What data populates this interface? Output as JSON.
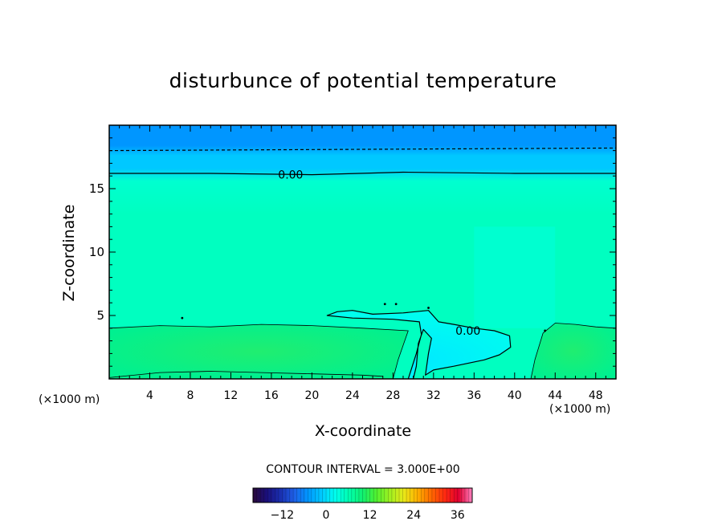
{
  "chart_data": {
    "type": "heatmap",
    "title": "disturbunce of potential temperature",
    "xlabel": "X-coordinate",
    "ylabel": "Z-coordinate",
    "x_unit": "(×1000 m)",
    "xlim": [
      0,
      50
    ],
    "ylim": [
      0,
      20
    ],
    "x_ticks": [
      4,
      8,
      12,
      16,
      20,
      24,
      28,
      32,
      36,
      40,
      44,
      48
    ],
    "y_ticks": [
      5,
      10,
      15
    ],
    "contour_interval_label": "CONTOUR INTERVAL = 3.000E+00",
    "contour_labels": [
      {
        "text": "0.00",
        "x": 17.9,
        "z": 16.1
      },
      {
        "text": "0.00",
        "x": 35.4,
        "z": 3.8
      }
    ],
    "contours": [
      {
        "level": 0,
        "style": "solid",
        "points": [
          [
            0,
            16.2
          ],
          [
            10,
            16.2
          ],
          [
            20,
            16.1
          ],
          [
            29,
            16.3
          ],
          [
            40,
            16.2
          ],
          [
            50,
            16.2
          ]
        ]
      },
      {
        "level": -3,
        "style": "dashed",
        "points": [
          [
            0,
            18.0
          ],
          [
            25,
            18.1
          ],
          [
            50,
            18.2
          ]
        ]
      },
      {
        "level": 0,
        "style": "solid",
        "points": [
          [
            29.5,
            0
          ],
          [
            30.3,
            2.0
          ],
          [
            30.8,
            3.5
          ],
          [
            30.6,
            4.5
          ],
          [
            28,
            4.7
          ],
          [
            24,
            4.8
          ],
          [
            21.5,
            5.0
          ],
          [
            22.5,
            5.3
          ],
          [
            24,
            5.4
          ],
          [
            26,
            5.1
          ],
          [
            29,
            5.2
          ],
          [
            31.5,
            5.4
          ],
          [
            32.5,
            4.5
          ],
          [
            34,
            4.3
          ],
          [
            36,
            4.0
          ],
          [
            38,
            3.8
          ],
          [
            39.5,
            3.4
          ],
          [
            39.6,
            2.5
          ],
          [
            38.5,
            1.9
          ],
          [
            37,
            1.5
          ],
          [
            34,
            1.0
          ],
          [
            32,
            0.7
          ],
          [
            31.2,
            0.3
          ],
          [
            31.5,
            2.0
          ],
          [
            31.8,
            3.2
          ],
          [
            31.0,
            3.9
          ],
          [
            30.5,
            2.8
          ],
          [
            30.3,
            1.0
          ],
          [
            30.0,
            0
          ]
        ]
      },
      {
        "level": 3,
        "style": "thin",
        "points": [
          [
            0,
            4.0
          ],
          [
            5,
            4.2
          ],
          [
            10,
            4.1
          ],
          [
            15,
            4.3
          ],
          [
            20,
            4.2
          ],
          [
            25,
            4.0
          ],
          [
            29.5,
            3.8
          ],
          [
            28.5,
            1.5
          ],
          [
            28,
            0
          ]
        ]
      },
      {
        "level": 3,
        "style": "thin",
        "points": [
          [
            0,
            0.1
          ],
          [
            5,
            0.5
          ],
          [
            10,
            0.6
          ],
          [
            15,
            0.5
          ],
          [
            20,
            0.4
          ],
          [
            25,
            0.3
          ],
          [
            27,
            0.2
          ]
        ]
      },
      {
        "level": 3,
        "style": "thin",
        "points": [
          [
            41.6,
            0
          ],
          [
            42,
            1.5
          ],
          [
            42.8,
            3.6
          ],
          [
            44,
            4.4
          ],
          [
            46,
            4.3
          ],
          [
            48,
            4.1
          ],
          [
            50,
            4.0
          ]
        ]
      }
    ],
    "colorbar": {
      "ticks": [
        -12,
        0,
        12,
        24,
        36
      ],
      "range": [
        -20,
        40
      ],
      "colors": [
        "#2a0a3a",
        "#1a0f7a",
        "#1a2fb0",
        "#1e5fe6",
        "#0096ff",
        "#00c8ff",
        "#00ffee",
        "#00ffb0",
        "#10f070",
        "#50f030",
        "#a0f020",
        "#e8e818",
        "#ffb000",
        "#ff6a00",
        "#ff2a10",
        "#e00030",
        "#ff80c0"
      ]
    },
    "field_colors": {
      "top_band": "#0096ff",
      "upper_band": "#00c8ff",
      "mid_band": "#00ffd0",
      "interior": "#00ffc0",
      "lower_layer": "#00f090",
      "lower_layer_core": "#20ee70",
      "plume": "#00ffee",
      "plume_core": "#00eaff"
    }
  }
}
